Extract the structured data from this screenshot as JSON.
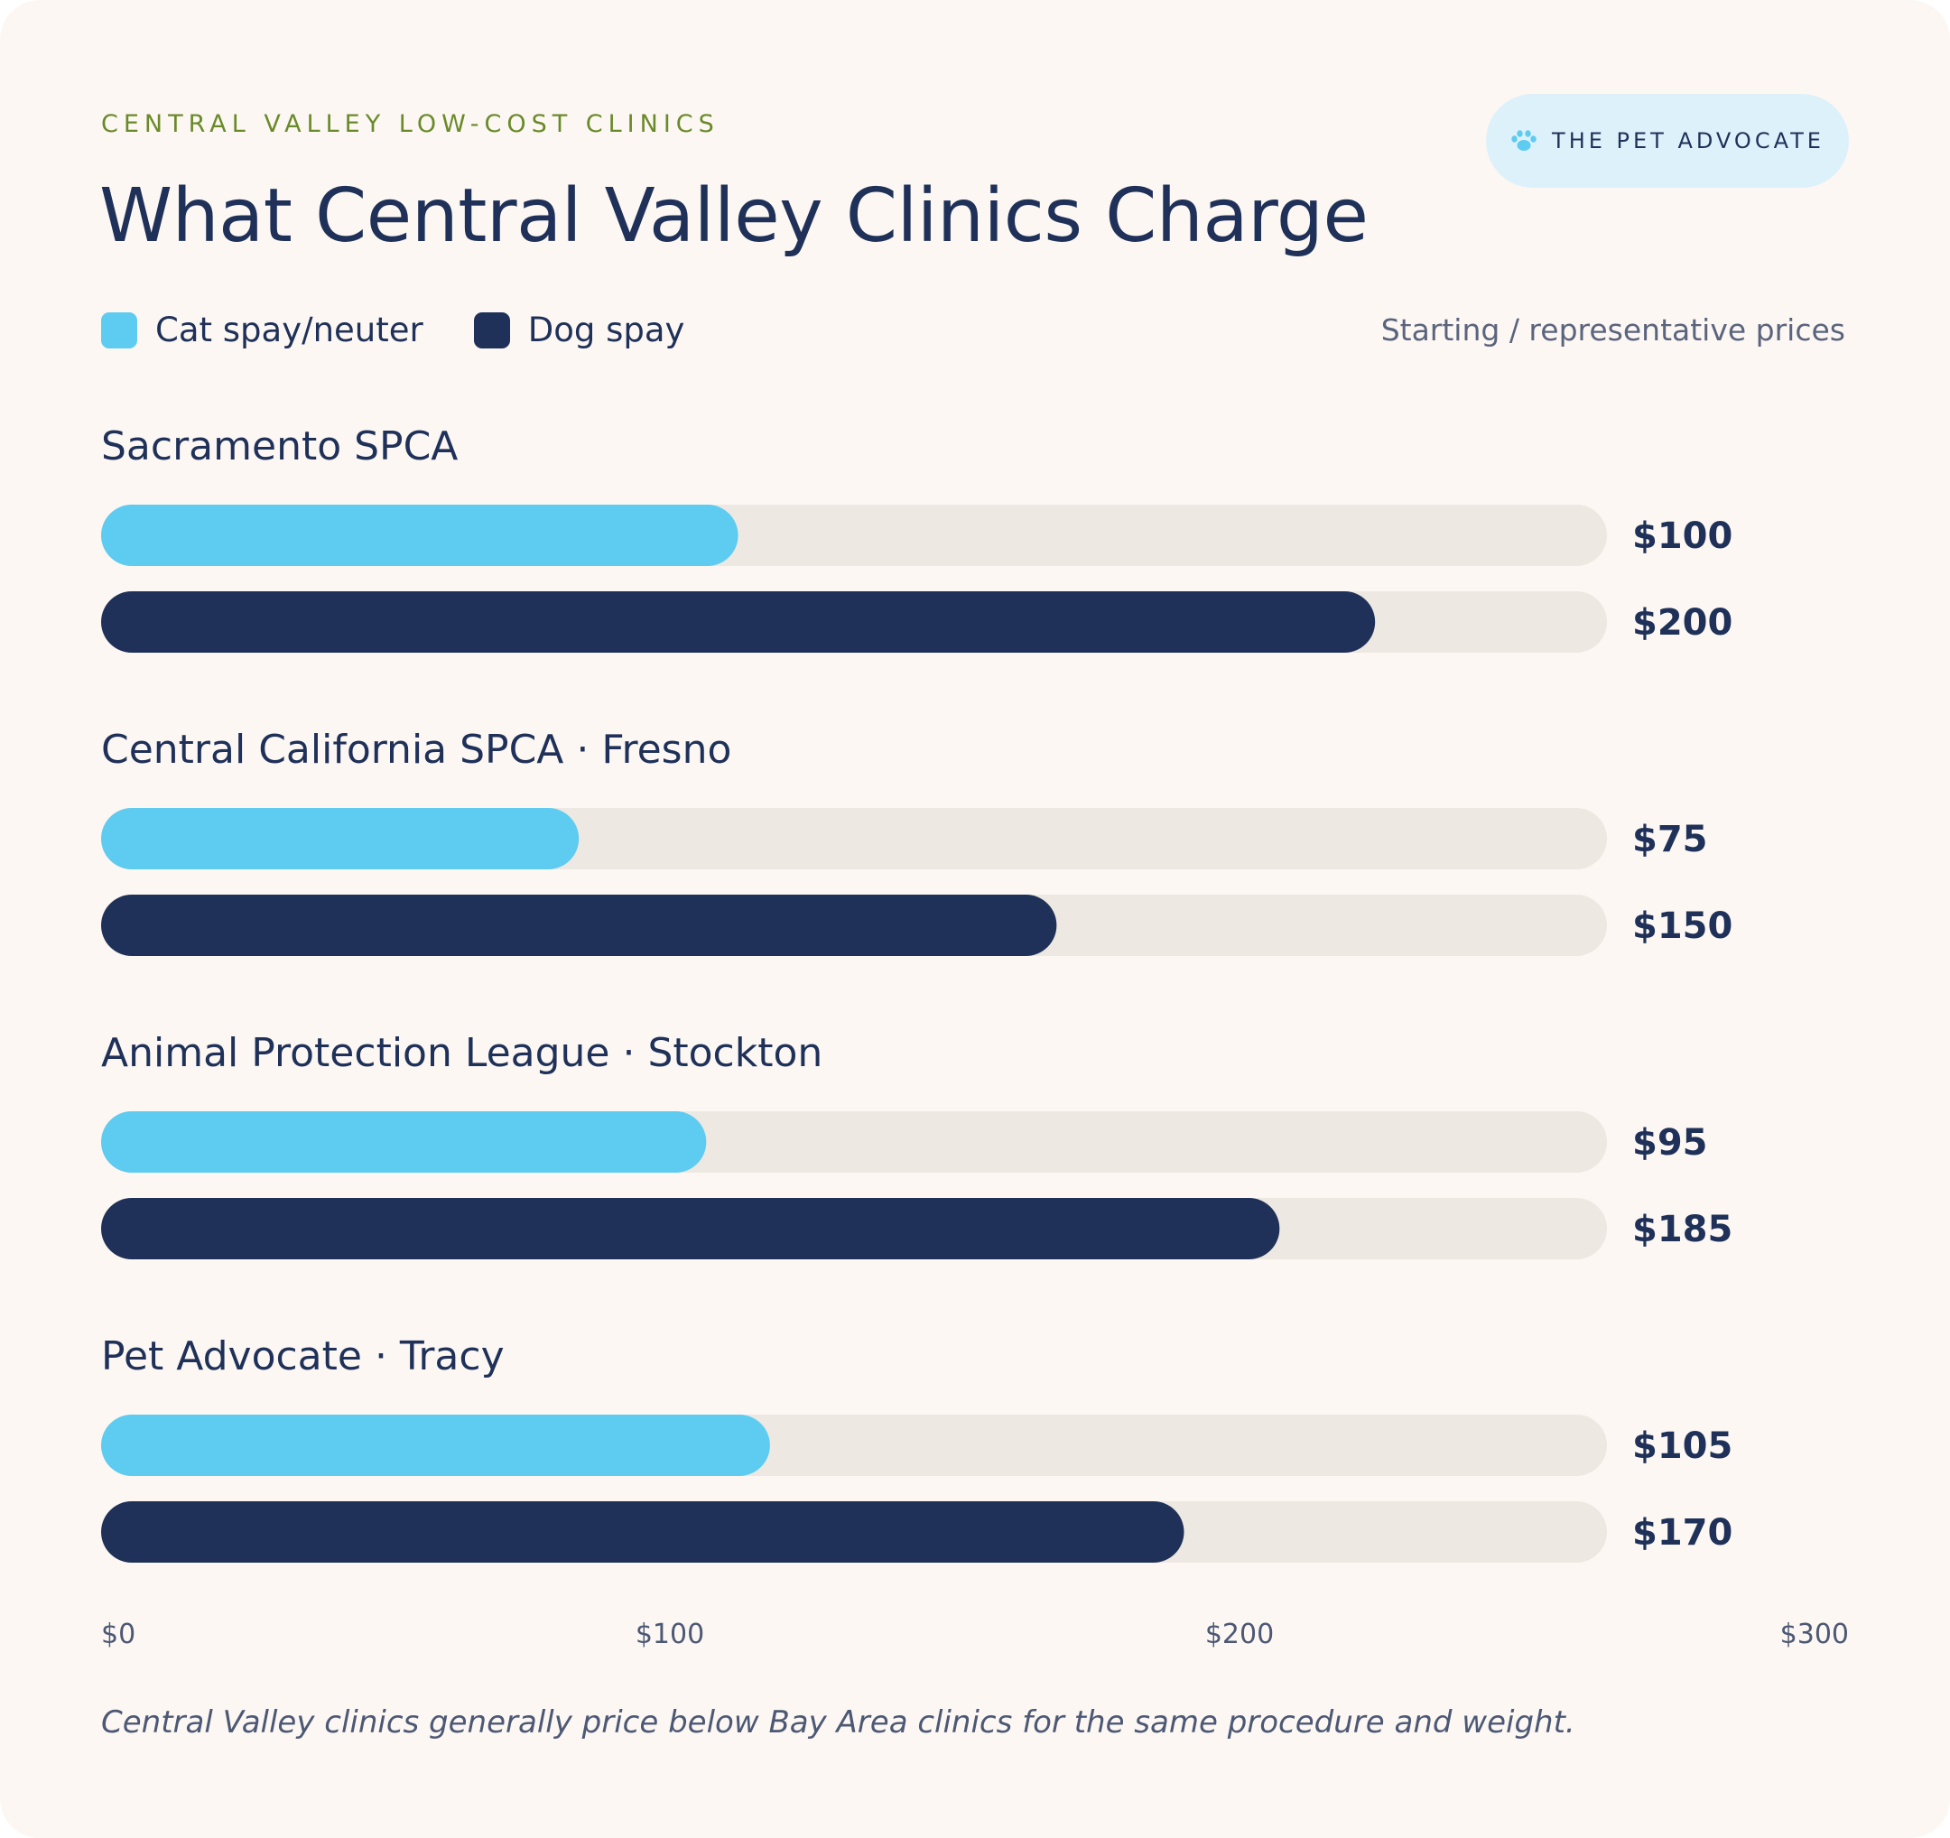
{
  "header": {
    "eyebrow": "CENTRAL VALLEY LOW-COST CLINICS",
    "title": "What Central Valley Clinics Charge",
    "brand": "THE PET ADVOCATE",
    "brand_icon": "paw-icon",
    "note": "Starting / representative prices"
  },
  "legend": [
    {
      "label": "Cat spay/neuter",
      "color": "#5ecbf1"
    },
    {
      "label": "Dog spay",
      "color": "#1f3159"
    }
  ],
  "footnote": "Central Valley clinics generally price below Bay Area clinics for the same procedure and weight.",
  "colors": {
    "background": "#fcf7f3",
    "track": "#ede8e1",
    "cat": "#5ecbf1",
    "dog": "#1f3159",
    "text": "#1f3159"
  },
  "chart_data": {
    "type": "bar",
    "orientation": "horizontal",
    "title": "What Central Valley Clinics Charge",
    "categories": [
      "Sacramento SPCA",
      "Central California SPCA · Fresno",
      "Animal Protection League · Stockton",
      "Pet Advocate · Tracy"
    ],
    "series": [
      {
        "name": "Cat spay/neuter",
        "values": [
          100,
          75,
          95,
          105
        ],
        "labels": [
          "$100",
          "$75",
          "$95",
          "$105"
        ]
      },
      {
        "name": "Dog spay",
        "values": [
          200,
          150,
          185,
          170
        ],
        "labels": [
          "$200",
          "$150",
          "$185",
          "$170"
        ]
      }
    ],
    "xlim": [
      0,
      300
    ],
    "ticks": [
      "$0",
      "$100",
      "$200",
      "$300"
    ],
    "grid": false,
    "legend_position": "top-left"
  }
}
